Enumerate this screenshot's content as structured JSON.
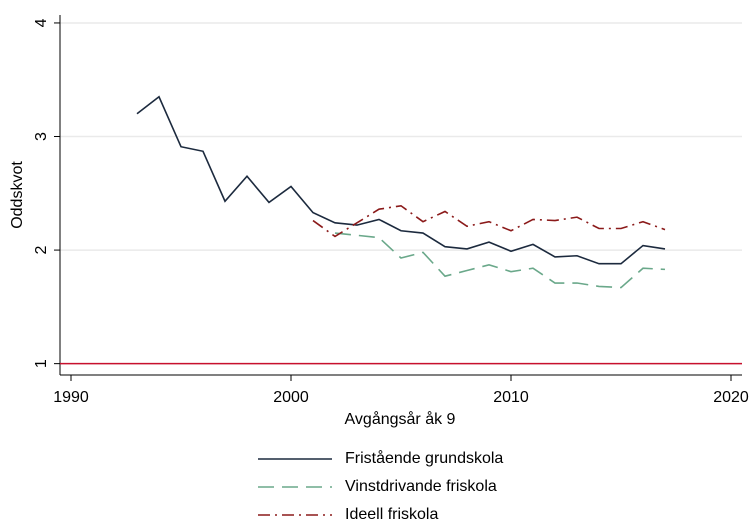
{
  "chart_data": {
    "type": "line",
    "x": [
      1993,
      1994,
      1995,
      1996,
      1997,
      1998,
      1999,
      2000,
      2001,
      2002,
      2003,
      2004,
      2005,
      2006,
      2007,
      2008,
      2009,
      2010,
      2011,
      2012,
      2013,
      2014,
      2015,
      2016,
      2017
    ],
    "series": [
      {
        "name": "Fristående grundskola",
        "color": "#1c2a3e",
        "dash": "none",
        "values": [
          3.2,
          3.35,
          2.91,
          2.87,
          2.43,
          2.65,
          2.42,
          2.56,
          2.33,
          2.24,
          2.22,
          2.27,
          2.17,
          2.15,
          2.03,
          2.01,
          2.07,
          1.99,
          2.05,
          1.94,
          1.95,
          1.88,
          1.88,
          2.04,
          2.01
        ]
      },
      {
        "name": "Vinstdrivande friskola",
        "color": "#6aa88a",
        "dash": "16 8",
        "values": [
          null,
          null,
          null,
          null,
          null,
          null,
          null,
          null,
          null,
          2.15,
          2.13,
          2.11,
          1.93,
          1.98,
          1.77,
          1.82,
          1.87,
          1.81,
          1.84,
          1.71,
          1.71,
          1.68,
          1.67,
          1.84,
          1.83
        ]
      },
      {
        "name": "Ideell friskola",
        "color": "#8b1a1a",
        "dash": "12 5 2 5",
        "values": [
          null,
          null,
          null,
          null,
          null,
          null,
          null,
          null,
          2.26,
          2.12,
          2.24,
          2.36,
          2.39,
          2.25,
          2.34,
          2.21,
          2.25,
          2.17,
          2.27,
          2.26,
          2.29,
          2.19,
          2.19,
          2.25,
          2.18
        ]
      }
    ],
    "reference_line": {
      "value": 1,
      "color": "#c8102e"
    },
    "xlim": [
      1989.5,
      2020.5
    ],
    "xticks": [
      1990,
      2000,
      2010,
      2020
    ],
    "ylim": [
      0.9,
      4.07
    ],
    "yticks": [
      1,
      2,
      3,
      4
    ],
    "grid": true,
    "x_label": "Avgångsår åk 9",
    "y_label": "Oddskvot",
    "legend": "bottom"
  }
}
